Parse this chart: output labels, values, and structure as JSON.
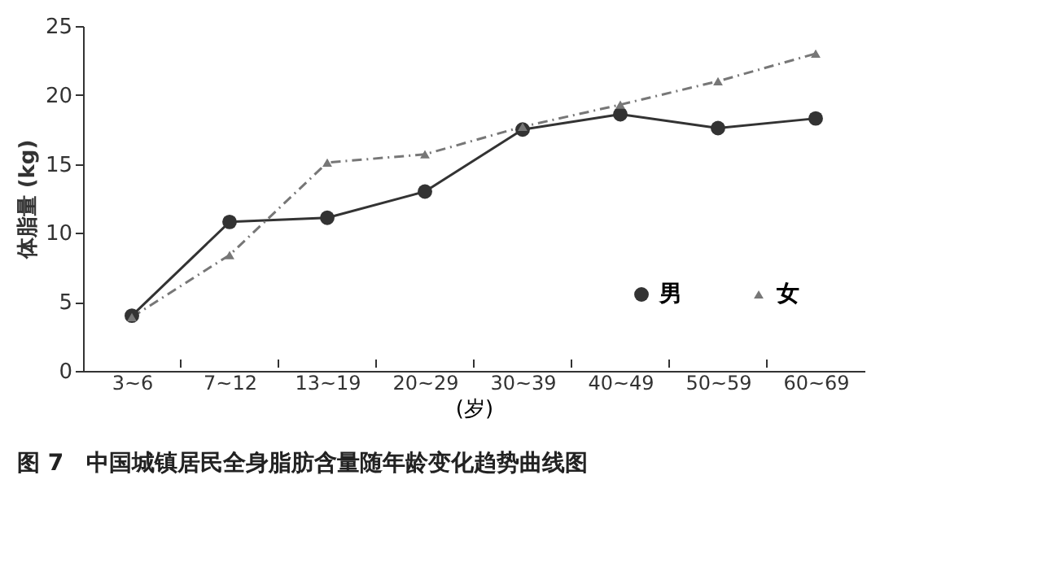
{
  "chart_data": {
    "type": "line",
    "title": "图 7　中国城镇居民全身脂肪含量随年龄变化趋势曲线图",
    "xlabel": "(岁)",
    "ylabel": "体脂量 (kg)",
    "categories": [
      "3~6",
      "7~12",
      "13~19",
      "20~29",
      "30~39",
      "40~49",
      "50~59",
      "60~69"
    ],
    "series": [
      {
        "name": "男",
        "color": "#333333",
        "marker": "circle",
        "line_style": "solid",
        "values": [
          4.0,
          10.8,
          11.1,
          13.0,
          17.5,
          18.6,
          17.6,
          18.3
        ]
      },
      {
        "name": "女",
        "color": "#777777",
        "marker": "triangle",
        "line_style": "dashed",
        "values": [
          3.9,
          8.4,
          15.1,
          15.7,
          17.7,
          19.3,
          21.0,
          23.0
        ]
      }
    ],
    "ylim": [
      0,
      25
    ],
    "yticks": [
      0,
      5,
      10,
      15,
      20,
      25
    ],
    "grid": false,
    "legend": "bottom right"
  }
}
